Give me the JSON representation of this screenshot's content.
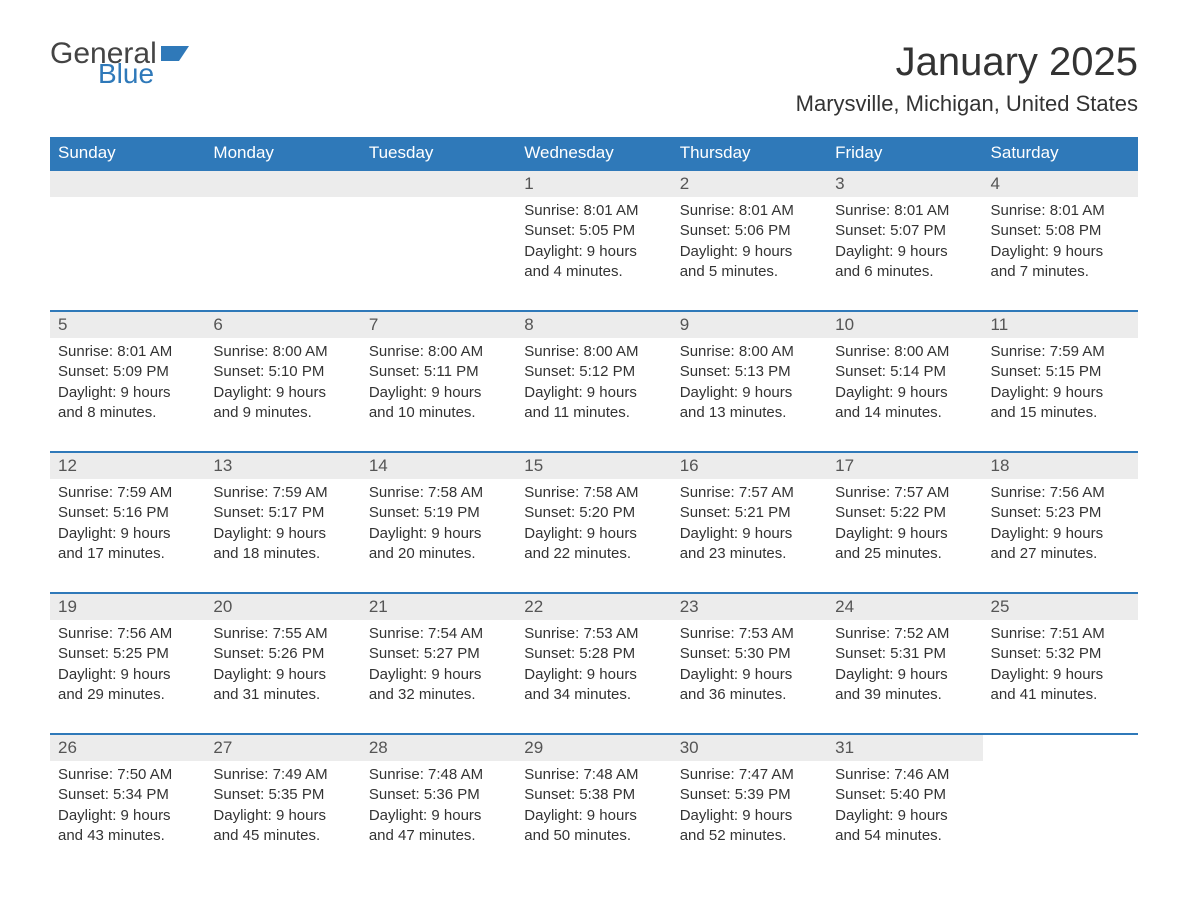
{
  "logo": {
    "word1": "General",
    "word2": "Blue",
    "accent_color": "#2f79b9"
  },
  "title": "January 2025",
  "location": "Marysville, Michigan, United States",
  "colors": {
    "header_bg": "#2f79b9",
    "header_fg": "#ffffff",
    "row_accent": "#2f79b9",
    "daynum_bg": "#ececec",
    "text": "#333333",
    "page_bg": "#ffffff"
  },
  "typography": {
    "title_fontsize": 40,
    "location_fontsize": 22,
    "dow_fontsize": 17,
    "daynum_fontsize": 17,
    "body_fontsize": 15,
    "font_family": "Arial"
  },
  "layout": {
    "columns": 7,
    "rows": 5,
    "cell_width_pct": 14.28
  },
  "days_of_week": [
    "Sunday",
    "Monday",
    "Tuesday",
    "Wednesday",
    "Thursday",
    "Friday",
    "Saturday"
  ],
  "weeks": [
    [
      null,
      null,
      null,
      {
        "n": "1",
        "sunrise": "8:01 AM",
        "sunset": "5:05 PM",
        "dl1": "Daylight: 9 hours",
        "dl2": "and 4 minutes."
      },
      {
        "n": "2",
        "sunrise": "8:01 AM",
        "sunset": "5:06 PM",
        "dl1": "Daylight: 9 hours",
        "dl2": "and 5 minutes."
      },
      {
        "n": "3",
        "sunrise": "8:01 AM",
        "sunset": "5:07 PM",
        "dl1": "Daylight: 9 hours",
        "dl2": "and 6 minutes."
      },
      {
        "n": "4",
        "sunrise": "8:01 AM",
        "sunset": "5:08 PM",
        "dl1": "Daylight: 9 hours",
        "dl2": "and 7 minutes."
      }
    ],
    [
      {
        "n": "5",
        "sunrise": "8:01 AM",
        "sunset": "5:09 PM",
        "dl1": "Daylight: 9 hours",
        "dl2": "and 8 minutes."
      },
      {
        "n": "6",
        "sunrise": "8:00 AM",
        "sunset": "5:10 PM",
        "dl1": "Daylight: 9 hours",
        "dl2": "and 9 minutes."
      },
      {
        "n": "7",
        "sunrise": "8:00 AM",
        "sunset": "5:11 PM",
        "dl1": "Daylight: 9 hours",
        "dl2": "and 10 minutes."
      },
      {
        "n": "8",
        "sunrise": "8:00 AM",
        "sunset": "5:12 PM",
        "dl1": "Daylight: 9 hours",
        "dl2": "and 11 minutes."
      },
      {
        "n": "9",
        "sunrise": "8:00 AM",
        "sunset": "5:13 PM",
        "dl1": "Daylight: 9 hours",
        "dl2": "and 13 minutes."
      },
      {
        "n": "10",
        "sunrise": "8:00 AM",
        "sunset": "5:14 PM",
        "dl1": "Daylight: 9 hours",
        "dl2": "and 14 minutes."
      },
      {
        "n": "11",
        "sunrise": "7:59 AM",
        "sunset": "5:15 PM",
        "dl1": "Daylight: 9 hours",
        "dl2": "and 15 minutes."
      }
    ],
    [
      {
        "n": "12",
        "sunrise": "7:59 AM",
        "sunset": "5:16 PM",
        "dl1": "Daylight: 9 hours",
        "dl2": "and 17 minutes."
      },
      {
        "n": "13",
        "sunrise": "7:59 AM",
        "sunset": "5:17 PM",
        "dl1": "Daylight: 9 hours",
        "dl2": "and 18 minutes."
      },
      {
        "n": "14",
        "sunrise": "7:58 AM",
        "sunset": "5:19 PM",
        "dl1": "Daylight: 9 hours",
        "dl2": "and 20 minutes."
      },
      {
        "n": "15",
        "sunrise": "7:58 AM",
        "sunset": "5:20 PM",
        "dl1": "Daylight: 9 hours",
        "dl2": "and 22 minutes."
      },
      {
        "n": "16",
        "sunrise": "7:57 AM",
        "sunset": "5:21 PM",
        "dl1": "Daylight: 9 hours",
        "dl2": "and 23 minutes."
      },
      {
        "n": "17",
        "sunrise": "7:57 AM",
        "sunset": "5:22 PM",
        "dl1": "Daylight: 9 hours",
        "dl2": "and 25 minutes."
      },
      {
        "n": "18",
        "sunrise": "7:56 AM",
        "sunset": "5:23 PM",
        "dl1": "Daylight: 9 hours",
        "dl2": "and 27 minutes."
      }
    ],
    [
      {
        "n": "19",
        "sunrise": "7:56 AM",
        "sunset": "5:25 PM",
        "dl1": "Daylight: 9 hours",
        "dl2": "and 29 minutes."
      },
      {
        "n": "20",
        "sunrise": "7:55 AM",
        "sunset": "5:26 PM",
        "dl1": "Daylight: 9 hours",
        "dl2": "and 31 minutes."
      },
      {
        "n": "21",
        "sunrise": "7:54 AM",
        "sunset": "5:27 PM",
        "dl1": "Daylight: 9 hours",
        "dl2": "and 32 minutes."
      },
      {
        "n": "22",
        "sunrise": "7:53 AM",
        "sunset": "5:28 PM",
        "dl1": "Daylight: 9 hours",
        "dl2": "and 34 minutes."
      },
      {
        "n": "23",
        "sunrise": "7:53 AM",
        "sunset": "5:30 PM",
        "dl1": "Daylight: 9 hours",
        "dl2": "and 36 minutes."
      },
      {
        "n": "24",
        "sunrise": "7:52 AM",
        "sunset": "5:31 PM",
        "dl1": "Daylight: 9 hours",
        "dl2": "and 39 minutes."
      },
      {
        "n": "25",
        "sunrise": "7:51 AM",
        "sunset": "5:32 PM",
        "dl1": "Daylight: 9 hours",
        "dl2": "and 41 minutes."
      }
    ],
    [
      {
        "n": "26",
        "sunrise": "7:50 AM",
        "sunset": "5:34 PM",
        "dl1": "Daylight: 9 hours",
        "dl2": "and 43 minutes."
      },
      {
        "n": "27",
        "sunrise": "7:49 AM",
        "sunset": "5:35 PM",
        "dl1": "Daylight: 9 hours",
        "dl2": "and 45 minutes."
      },
      {
        "n": "28",
        "sunrise": "7:48 AM",
        "sunset": "5:36 PM",
        "dl1": "Daylight: 9 hours",
        "dl2": "and 47 minutes."
      },
      {
        "n": "29",
        "sunrise": "7:48 AM",
        "sunset": "5:38 PM",
        "dl1": "Daylight: 9 hours",
        "dl2": "and 50 minutes."
      },
      {
        "n": "30",
        "sunrise": "7:47 AM",
        "sunset": "5:39 PM",
        "dl1": "Daylight: 9 hours",
        "dl2": "and 52 minutes."
      },
      {
        "n": "31",
        "sunrise": "7:46 AM",
        "sunset": "5:40 PM",
        "dl1": "Daylight: 9 hours",
        "dl2": "and 54 minutes."
      },
      null
    ]
  ],
  "labels": {
    "sunrise": "Sunrise: ",
    "sunset": "Sunset: "
  }
}
